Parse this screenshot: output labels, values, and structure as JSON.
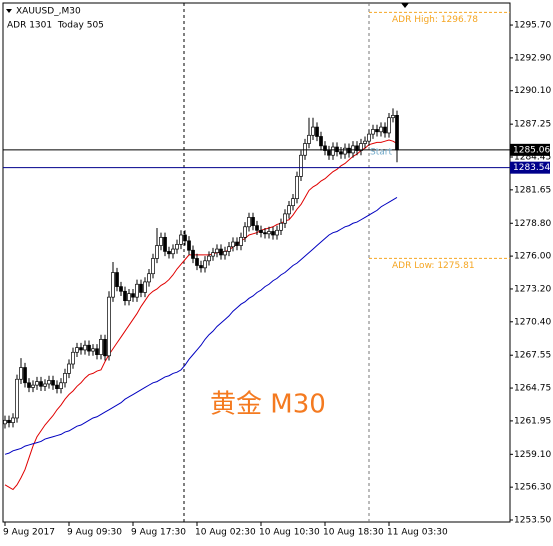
{
  "chart_data": {
    "type": "candlestick",
    "title": "XAUUSD_,M30",
    "subtitle": "ADR 1301  Today 505",
    "watermark": "黄金 M30",
    "start_label": "Start",
    "categories": [
      "9 Aug 2017",
      null,
      null,
      null,
      null,
      null,
      null,
      null,
      null,
      null,
      null,
      null,
      null,
      null,
      null,
      null,
      "9 Aug 09:30",
      null,
      null,
      null,
      null,
      null,
      null,
      null,
      null,
      null,
      null,
      null,
      null,
      null,
      null,
      null,
      "9 Aug 17:30",
      null,
      null,
      null,
      null,
      null,
      null,
      null,
      null,
      null,
      null,
      null,
      null,
      null,
      null,
      null,
      "10 Aug 02:30",
      null,
      null,
      null,
      null,
      null,
      null,
      null,
      null,
      null,
      null,
      null,
      null,
      null,
      null,
      null,
      "10 Aug 10:30",
      null,
      null,
      null,
      null,
      null,
      null,
      null,
      null,
      null,
      null,
      null,
      null,
      null,
      null,
      null,
      "10 Aug 18:30",
      null,
      null,
      null,
      null,
      null,
      null,
      null,
      null,
      null,
      null,
      null,
      null,
      null,
      null,
      null,
      "11 Aug 03:30",
      null,
      null
    ],
    "open": [
      1261.7,
      1262.0,
      1261.8,
      1262.2,
      1265.5,
      1266.5,
      1265.2,
      1264.8,
      1265.0,
      1265.3,
      1264.9,
      1265.1,
      1265.4,
      1265.0,
      1264.7,
      1265.2,
      1266.0,
      1266.8,
      1267.8,
      1268.2,
      1268.0,
      1268.4,
      1267.9,
      1268.1,
      1267.6,
      1268.9,
      1267.5,
      1272.5,
      1274.6,
      1273.4,
      1273.0,
      1272.2,
      1272.8,
      1272.5,
      1273.6,
      1272.9,
      1273.8,
      1274.5,
      1275.8,
      1276.9,
      1277.6,
      1276.4,
      1276.2,
      1276.6,
      1277.0,
      1277.8,
      1277.3,
      1276.5,
      1275.8,
      1275.2,
      1275.0,
      1275.6,
      1276.0,
      1276.3,
      1276.6,
      1276.1,
      1276.4,
      1276.8,
      1277.2,
      1276.9,
      1277.6,
      1278.5,
      1279.3,
      1278.6,
      1278.2,
      1278.0,
      1277.9,
      1278.1,
      1277.8,
      1278.2,
      1278.8,
      1279.6,
      1280.3,
      1280.9,
      1282.8,
      1284.6,
      1285.6,
      1286.3,
      1287.0,
      1286.2,
      1285.4,
      1285.0,
      1284.6,
      1285.3,
      1284.9,
      1284.7,
      1285.2,
      1284.8,
      1285.4,
      1285.0,
      1285.6,
      1285.8,
      1286.4,
      1286.8,
      1286.6,
      1287.0,
      1286.5,
      1287.8,
      1288.0
    ],
    "high": [
      1262.4,
      1262.4,
      1262.6,
      1265.9,
      1267.3,
      1266.9,
      1265.6,
      1265.4,
      1265.7,
      1265.7,
      1265.5,
      1265.8,
      1265.8,
      1265.4,
      1265.6,
      1266.4,
      1267.2,
      1268.2,
      1268.6,
      1268.6,
      1268.8,
      1268.8,
      1268.5,
      1268.5,
      1269.3,
      1269.3,
      1273.0,
      1275.5,
      1275.0,
      1273.8,
      1273.4,
      1273.2,
      1273.2,
      1274.0,
      1274.0,
      1274.2,
      1274.9,
      1276.2,
      1278.4,
      1278.0,
      1278.0,
      1276.8,
      1277.0,
      1277.4,
      1278.2,
      1278.2,
      1277.7,
      1276.9,
      1276.2,
      1275.6,
      1276.0,
      1276.4,
      1276.7,
      1277.0,
      1277.0,
      1276.8,
      1277.2,
      1277.6,
      1277.6,
      1278.0,
      1278.9,
      1279.7,
      1279.7,
      1279.0,
      1278.6,
      1278.4,
      1278.5,
      1278.5,
      1278.6,
      1279.2,
      1280.0,
      1280.7,
      1281.3,
      1283.2,
      1285.0,
      1286.0,
      1287.8,
      1287.8,
      1287.4,
      1286.6,
      1285.8,
      1285.4,
      1285.7,
      1285.7,
      1285.3,
      1285.6,
      1285.6,
      1285.8,
      1285.8,
      1286.0,
      1286.2,
      1286.8,
      1287.2,
      1287.2,
      1287.4,
      1287.4,
      1288.2,
      1288.6,
      1288.4
    ],
    "low": [
      1261.3,
      1261.4,
      1261.4,
      1261.8,
      1265.1,
      1264.8,
      1264.4,
      1264.4,
      1264.6,
      1264.5,
      1264.5,
      1264.7,
      1264.6,
      1264.3,
      1264.3,
      1264.8,
      1265.6,
      1266.4,
      1267.4,
      1267.6,
      1267.6,
      1267.5,
      1267.5,
      1267.2,
      1267.2,
      1267.1,
      1267.1,
      1272.1,
      1273.0,
      1272.6,
      1271.8,
      1271.8,
      1272.1,
      1272.1,
      1272.5,
      1272.5,
      1273.4,
      1274.1,
      1275.4,
      1276.5,
      1276.0,
      1275.8,
      1275.8,
      1276.2,
      1276.6,
      1276.9,
      1276.1,
      1275.4,
      1274.8,
      1274.6,
      1274.6,
      1275.2,
      1275.6,
      1275.9,
      1275.7,
      1275.7,
      1276.0,
      1276.4,
      1276.5,
      1276.5,
      1277.2,
      1278.1,
      1278.2,
      1277.8,
      1277.6,
      1277.5,
      1277.5,
      1277.4,
      1277.4,
      1277.8,
      1278.4,
      1279.2,
      1279.9,
      1280.5,
      1282.4,
      1284.2,
      1285.2,
      1285.9,
      1285.8,
      1285.0,
      1284.6,
      1284.2,
      1284.2,
      1284.5,
      1284.3,
      1284.3,
      1284.4,
      1284.4,
      1284.6,
      1284.6,
      1285.2,
      1285.4,
      1286.0,
      1286.2,
      1286.2,
      1286.1,
      1286.1,
      1287.4,
      1284.0
    ],
    "close": [
      1262.0,
      1261.8,
      1262.2,
      1265.5,
      1266.5,
      1265.2,
      1264.8,
      1265.0,
      1265.3,
      1264.9,
      1265.1,
      1265.4,
      1265.0,
      1264.7,
      1265.2,
      1266.0,
      1266.8,
      1267.8,
      1268.2,
      1268.0,
      1268.4,
      1267.9,
      1268.1,
      1267.6,
      1268.9,
      1267.5,
      1272.5,
      1274.6,
      1273.4,
      1273.0,
      1272.2,
      1272.8,
      1272.5,
      1273.6,
      1272.9,
      1273.8,
      1274.5,
      1275.8,
      1276.9,
      1277.6,
      1276.4,
      1276.2,
      1276.6,
      1277.0,
      1277.8,
      1277.3,
      1276.5,
      1275.8,
      1275.2,
      1275.0,
      1275.6,
      1276.0,
      1276.3,
      1276.6,
      1276.1,
      1276.4,
      1276.8,
      1277.2,
      1276.9,
      1277.6,
      1278.5,
      1279.3,
      1278.6,
      1278.2,
      1278.0,
      1277.9,
      1278.1,
      1277.8,
      1278.2,
      1278.8,
      1279.6,
      1280.3,
      1280.9,
      1282.8,
      1284.6,
      1285.6,
      1286.3,
      1287.0,
      1286.2,
      1285.4,
      1285.0,
      1284.6,
      1285.3,
      1284.9,
      1284.7,
      1285.2,
      1284.8,
      1285.4,
      1285.0,
      1285.6,
      1285.8,
      1286.4,
      1286.8,
      1286.6,
      1287.0,
      1286.5,
      1287.8,
      1288.0,
      1285.06
    ],
    "up_color": "#ffffff",
    "down_color": "#000000",
    "series": [
      {
        "color": "#e00000",
        "values": [
          1256.5,
          1256.3,
          1256.1,
          1256.5,
          1257.1,
          1257.8,
          1258.8,
          1259.8,
          1260.6,
          1261.1,
          1261.6,
          1262.0,
          1262.4,
          1262.9,
          1263.3,
          1263.8,
          1264.2,
          1264.5,
          1264.9,
          1265.2,
          1265.6,
          1265.9,
          1266.0,
          1266.2,
          1266.3,
          1267.0,
          1267.6,
          1268.1,
          1268.6,
          1269.1,
          1269.6,
          1270.1,
          1270.6,
          1271.1,
          1271.7,
          1272.2,
          1272.7,
          1273.0,
          1273.2,
          1273.5,
          1273.7,
          1274.0,
          1274.4,
          1274.9,
          1275.3,
          1275.7,
          1276.1,
          1276.1,
          1276.1,
          1276.1,
          1276.1,
          1276.1,
          1276.2,
          1276.3,
          1276.3,
          1276.4,
          1276.5,
          1276.8,
          1277.0,
          1277.3,
          1277.5,
          1277.8,
          1277.9,
          1278.0,
          1278.2,
          1278.3,
          1278.4,
          1278.5,
          1278.7,
          1278.8,
          1279.0,
          1279.1,
          1279.5,
          1280.0,
          1280.4,
          1281.0,
          1281.6,
          1281.9,
          1282.1,
          1282.4,
          1282.6,
          1282.9,
          1283.2,
          1283.4,
          1283.7,
          1283.9,
          1284.2,
          1284.5,
          1284.7,
          1285.0,
          1285.2,
          1285.5,
          1285.6,
          1285.7,
          1285.7,
          1285.8,
          1285.9,
          1285.8,
          1285.6
        ]
      },
      {
        "color": "#0000c0",
        "values": [
          1259.1,
          1259.2,
          1259.4,
          1259.5,
          1259.6,
          1259.8,
          1259.9,
          1260.0,
          1260.1,
          1260.2,
          1260.4,
          1260.5,
          1260.6,
          1260.7,
          1260.8,
          1261.0,
          1261.1,
          1261.3,
          1261.5,
          1261.6,
          1261.8,
          1262.0,
          1262.2,
          1262.3,
          1262.5,
          1262.7,
          1262.9,
          1263.1,
          1263.3,
          1263.5,
          1263.8,
          1264.0,
          1264.2,
          1264.4,
          1264.6,
          1264.8,
          1265.0,
          1265.2,
          1265.3,
          1265.5,
          1265.7,
          1265.8,
          1266.0,
          1266.1,
          1266.3,
          1266.7,
          1267.2,
          1267.6,
          1268.0,
          1268.4,
          1268.9,
          1269.3,
          1269.6,
          1270.0,
          1270.3,
          1270.6,
          1270.9,
          1271.3,
          1271.6,
          1271.9,
          1272.1,
          1272.4,
          1272.6,
          1272.9,
          1273.1,
          1273.4,
          1273.6,
          1273.9,
          1274.1,
          1274.4,
          1274.6,
          1274.9,
          1275.2,
          1275.4,
          1275.7,
          1276.0,
          1276.3,
          1276.6,
          1276.9,
          1277.2,
          1277.5,
          1277.8,
          1278.0,
          1278.1,
          1278.3,
          1278.5,
          1278.6,
          1278.8,
          1278.9,
          1279.1,
          1279.3,
          1279.5,
          1279.7,
          1279.9,
          1280.2,
          1280.4,
          1280.6,
          1280.8,
          1281.0
        ]
      }
    ],
    "ylim": [
      1253.33,
      1297.58
    ],
    "yticks": [
      {
        "value": 1295.7,
        "label": "1295.70"
      },
      {
        "value": 1292.9,
        "label": "1292.90"
      },
      {
        "value": 1290.1,
        "label": "1290.10"
      },
      1287.25,
      1284.45,
      1281.65,
      {
        "value": 1278.8,
        "label": "1278.80"
      },
      {
        "value": 1276.0,
        "label": "1276.00"
      },
      {
        "value": 1273.2,
        "label": "1273.20"
      },
      {
        "value": 1270.4,
        "label": "1270.40"
      },
      1267.55,
      1264.75,
      1261.95,
      {
        "value": 1259.1,
        "label": "1259.10"
      },
      {
        "value": 1256.3,
        "label": "1256.30"
      },
      {
        "value": 1253.5,
        "label": "1253.50"
      }
    ],
    "price_lines": [
      {
        "value": 1285.06,
        "color": "#000000"
      },
      {
        "value": 1283.54,
        "color": "#00008b"
      }
    ],
    "annotations": [
      {
        "label": "ADR High: 1296.78",
        "value": 1296.78,
        "color": "#f5a623"
      },
      {
        "label": "ADR Low: 1275.81",
        "value": 1275.81,
        "color": "#f5a623"
      }
    ]
  }
}
